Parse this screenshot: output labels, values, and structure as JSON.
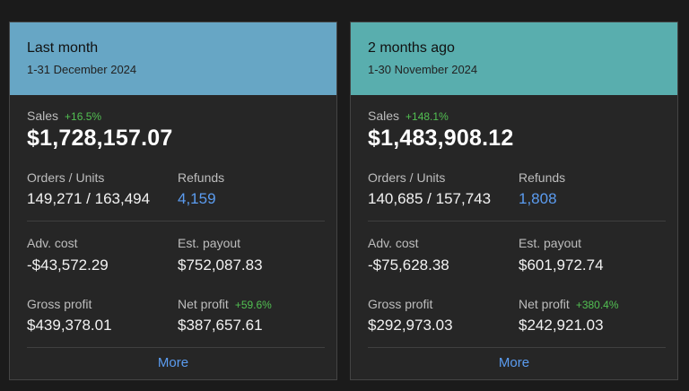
{
  "colors": {
    "card_0_header": "#67a6c5",
    "card_1_header": "#59aeae",
    "positive": "#52c052",
    "link": "#5b9cf0"
  },
  "cards": [
    {
      "title": "Last month",
      "date_range": "1-31 December 2024",
      "sales_label": "Sales",
      "sales_change": "+16.5%",
      "sales_value": "$1,728,157.07",
      "orders_label": "Orders / Units",
      "orders_value": "149,271 / 163,494",
      "refunds_label": "Refunds",
      "refunds_value": "4,159",
      "adv_label": "Adv. cost",
      "adv_value": "-$43,572.29",
      "payout_label": "Est. payout",
      "payout_value": "$752,087.83",
      "gross_label": "Gross profit",
      "gross_value": "$439,378.01",
      "net_label": "Net profit",
      "net_change": "+59.6%",
      "net_value": "$387,657.61",
      "more_label": "More"
    },
    {
      "title": "2 months ago",
      "date_range": "1-30 November 2024",
      "sales_label": "Sales",
      "sales_change": "+148.1%",
      "sales_value": "$1,483,908.12",
      "orders_label": "Orders / Units",
      "orders_value": "140,685 / 157,743",
      "refunds_label": "Refunds",
      "refunds_value": "1,808",
      "adv_label": "Adv. cost",
      "adv_value": "-$75,628.38",
      "payout_label": "Est. payout",
      "payout_value": "$601,972.74",
      "gross_label": "Gross profit",
      "gross_value": "$292,973.03",
      "net_label": "Net profit",
      "net_change": "+380.4%",
      "net_value": "$242,921.03",
      "more_label": "More"
    }
  ]
}
